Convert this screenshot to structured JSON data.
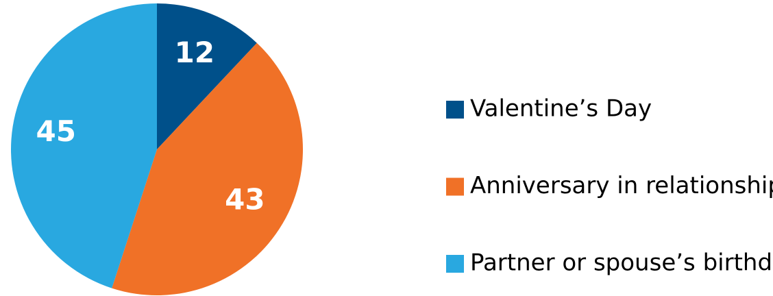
{
  "chart_data": {
    "type": "pie",
    "categories": [
      "Valentine’s Day",
      "Anniversary in relationship",
      "Partner or spouse’s birthday"
    ],
    "values": [
      12,
      43,
      45
    ],
    "colors": [
      "#00508a",
      "#f07127",
      "#29a8e0"
    ]
  }
}
